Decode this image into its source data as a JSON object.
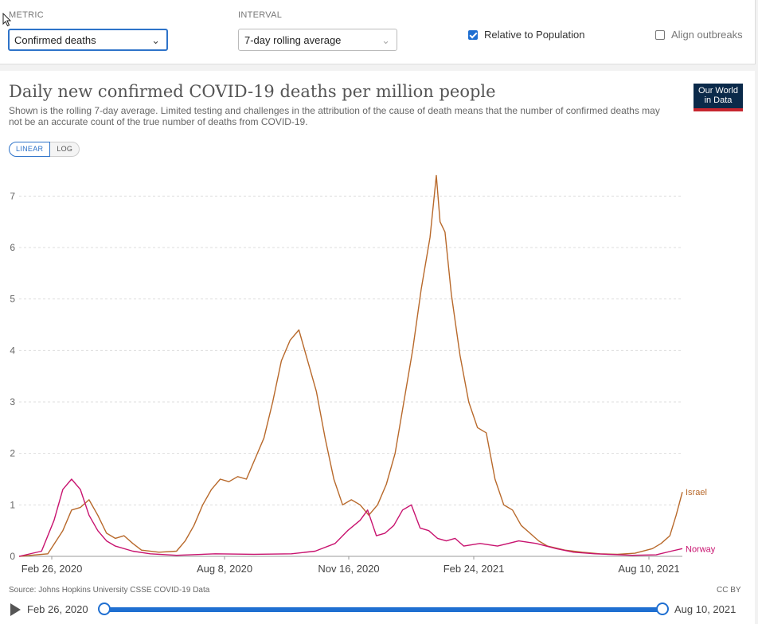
{
  "controls": {
    "metric_label": "METRIC",
    "metric_value": "Confirmed deaths",
    "interval_label": "INTERVAL",
    "interval_value": "7-day rolling average",
    "relative_label": "Relative to Population",
    "relative_checked": true,
    "align_label": "Align outbreaks",
    "align_checked": false
  },
  "logo": {
    "line1": "Our World",
    "line2": "in Data"
  },
  "scale_toggle": {
    "linear": "LINEAR",
    "log": "LOG",
    "active": "linear"
  },
  "footer": {
    "source": "Source: Johns Hopkins University CSSE COVID-19 Data",
    "license": "CC BY"
  },
  "timeline": {
    "start": "Feb 26, 2020",
    "end": "Aug 10, 2021"
  },
  "colors": {
    "israel": "#b8692b",
    "norway": "#c8136f",
    "accent": "#1f6fd1"
  },
  "chart_data": {
    "type": "line",
    "title": "Daily new confirmed COVID-19 deaths per million people",
    "subtitle": "Shown is the rolling 7-day average. Limited testing and challenges in the attribution of the cause of death means that the number of confirmed deaths may not be an accurate count of the true number of deaths from COVID-19.",
    "x_ticks": [
      "Feb 26, 2020",
      "Aug 8, 2020",
      "Nov 16, 2020",
      "Feb 24, 2021",
      "Aug 10, 2021"
    ],
    "x_range": [
      "2020-02-26",
      "2021-08-10"
    ],
    "y_ticks": [
      0,
      1,
      2,
      3,
      4,
      5,
      6,
      7
    ],
    "ylim": [
      0,
      7.5
    ],
    "grid": true,
    "series": [
      {
        "name": "Israel",
        "color": "#b8692b",
        "points": [
          [
            "2020-02-26",
            0
          ],
          [
            "2020-03-20",
            0.05
          ],
          [
            "2020-04-01",
            0.5
          ],
          [
            "2020-04-08",
            0.9
          ],
          [
            "2020-04-15",
            0.95
          ],
          [
            "2020-04-22",
            1.1
          ],
          [
            "2020-04-29",
            0.8
          ],
          [
            "2020-05-06",
            0.45
          ],
          [
            "2020-05-13",
            0.35
          ],
          [
            "2020-05-20",
            0.4
          ],
          [
            "2020-05-27",
            0.25
          ],
          [
            "2020-06-03",
            0.12
          ],
          [
            "2020-06-17",
            0.08
          ],
          [
            "2020-07-01",
            0.1
          ],
          [
            "2020-07-08",
            0.3
          ],
          [
            "2020-07-15",
            0.6
          ],
          [
            "2020-07-22",
            1.0
          ],
          [
            "2020-07-29",
            1.3
          ],
          [
            "2020-08-05",
            1.5
          ],
          [
            "2020-08-12",
            1.45
          ],
          [
            "2020-08-19",
            1.55
          ],
          [
            "2020-08-26",
            1.5
          ],
          [
            "2020-09-02",
            1.9
          ],
          [
            "2020-09-09",
            2.3
          ],
          [
            "2020-09-16",
            3.0
          ],
          [
            "2020-09-23",
            3.8
          ],
          [
            "2020-09-30",
            4.2
          ],
          [
            "2020-10-07",
            4.4
          ],
          [
            "2020-10-14",
            3.8
          ],
          [
            "2020-10-21",
            3.2
          ],
          [
            "2020-10-28",
            2.3
          ],
          [
            "2020-11-04",
            1.5
          ],
          [
            "2020-11-11",
            1.0
          ],
          [
            "2020-11-18",
            1.1
          ],
          [
            "2020-11-25",
            1.0
          ],
          [
            "2020-12-02",
            0.8
          ],
          [
            "2020-12-09",
            1.0
          ],
          [
            "2020-12-16",
            1.4
          ],
          [
            "2020-12-23",
            2.0
          ],
          [
            "2020-12-30",
            3.0
          ],
          [
            "2021-01-06",
            4.0
          ],
          [
            "2021-01-13",
            5.2
          ],
          [
            "2021-01-20",
            6.2
          ],
          [
            "2021-01-25",
            7.4
          ],
          [
            "2021-01-28",
            6.5
          ],
          [
            "2021-02-01",
            6.3
          ],
          [
            "2021-02-06",
            5.1
          ],
          [
            "2021-02-13",
            3.9
          ],
          [
            "2021-02-20",
            3.0
          ],
          [
            "2021-02-27",
            2.5
          ],
          [
            "2021-03-06",
            2.4
          ],
          [
            "2021-03-13",
            1.5
          ],
          [
            "2021-03-20",
            1.0
          ],
          [
            "2021-03-27",
            0.9
          ],
          [
            "2021-04-03",
            0.6
          ],
          [
            "2021-04-10",
            0.45
          ],
          [
            "2021-04-17",
            0.3
          ],
          [
            "2021-04-24",
            0.2
          ],
          [
            "2021-05-08",
            0.12
          ],
          [
            "2021-05-22",
            0.08
          ],
          [
            "2021-06-05",
            0.05
          ],
          [
            "2021-06-19",
            0.04
          ],
          [
            "2021-07-03",
            0.06
          ],
          [
            "2021-07-17",
            0.15
          ],
          [
            "2021-07-24",
            0.25
          ],
          [
            "2021-07-31",
            0.4
          ],
          [
            "2021-08-05",
            0.8
          ],
          [
            "2021-08-10",
            1.25
          ]
        ]
      },
      {
        "name": "Norway",
        "color": "#c8136f",
        "points": [
          [
            "2020-02-26",
            0
          ],
          [
            "2020-03-15",
            0.1
          ],
          [
            "2020-03-25",
            0.7
          ],
          [
            "2020-04-01",
            1.3
          ],
          [
            "2020-04-08",
            1.5
          ],
          [
            "2020-04-15",
            1.3
          ],
          [
            "2020-04-22",
            0.8
          ],
          [
            "2020-04-29",
            0.5
          ],
          [
            "2020-05-06",
            0.3
          ],
          [
            "2020-05-13",
            0.2
          ],
          [
            "2020-05-27",
            0.1
          ],
          [
            "2020-06-10",
            0.05
          ],
          [
            "2020-07-01",
            0.02
          ],
          [
            "2020-08-01",
            0.05
          ],
          [
            "2020-09-01",
            0.04
          ],
          [
            "2020-10-01",
            0.05
          ],
          [
            "2020-10-20",
            0.1
          ],
          [
            "2020-11-05",
            0.25
          ],
          [
            "2020-11-15",
            0.5
          ],
          [
            "2020-11-25",
            0.7
          ],
          [
            "2020-12-01",
            0.9
          ],
          [
            "2020-12-08",
            0.4
          ],
          [
            "2020-12-15",
            0.45
          ],
          [
            "2020-12-22",
            0.6
          ],
          [
            "2020-12-29",
            0.9
          ],
          [
            "2021-01-05",
            1.0
          ],
          [
            "2021-01-12",
            0.55
          ],
          [
            "2021-01-19",
            0.5
          ],
          [
            "2021-01-26",
            0.35
          ],
          [
            "2021-02-02",
            0.3
          ],
          [
            "2021-02-09",
            0.35
          ],
          [
            "2021-02-16",
            0.2
          ],
          [
            "2021-03-01",
            0.25
          ],
          [
            "2021-03-15",
            0.2
          ],
          [
            "2021-04-01",
            0.3
          ],
          [
            "2021-04-15",
            0.25
          ],
          [
            "2021-05-01",
            0.15
          ],
          [
            "2021-05-15",
            0.08
          ],
          [
            "2021-06-01",
            0.05
          ],
          [
            "2021-07-01",
            0.02
          ],
          [
            "2021-07-20",
            0.03
          ],
          [
            "2021-08-01",
            0.1
          ],
          [
            "2021-08-10",
            0.15
          ]
        ]
      }
    ]
  }
}
